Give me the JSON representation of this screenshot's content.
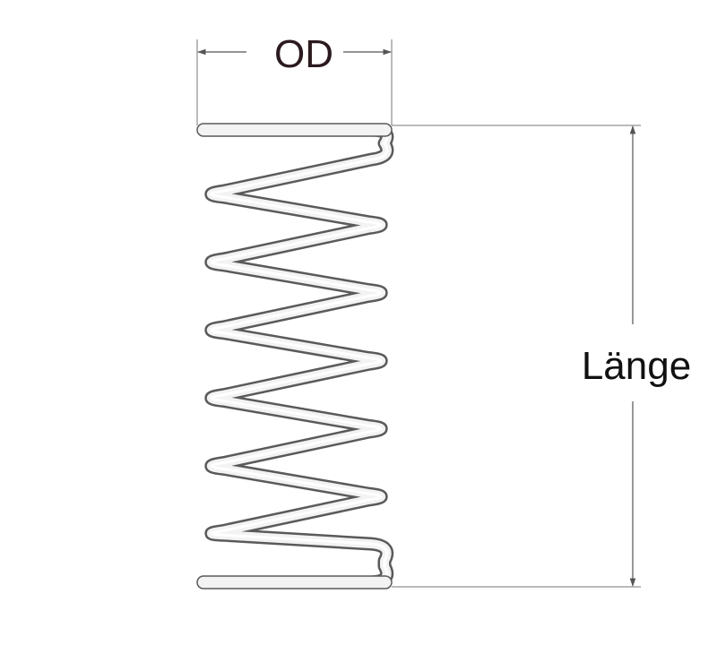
{
  "labels": {
    "outer_diameter": "OD",
    "length": "Länge"
  },
  "colors": {
    "background": "#ffffff",
    "od_label": "#2b1a1e",
    "length_label": "#111111",
    "dimension_line": "#555555",
    "coil_outline": "#5a5a5a",
    "coil_fill": "#f3f3f3"
  },
  "spring": {
    "active_coils": 6,
    "ends": "closed-and-ground"
  }
}
